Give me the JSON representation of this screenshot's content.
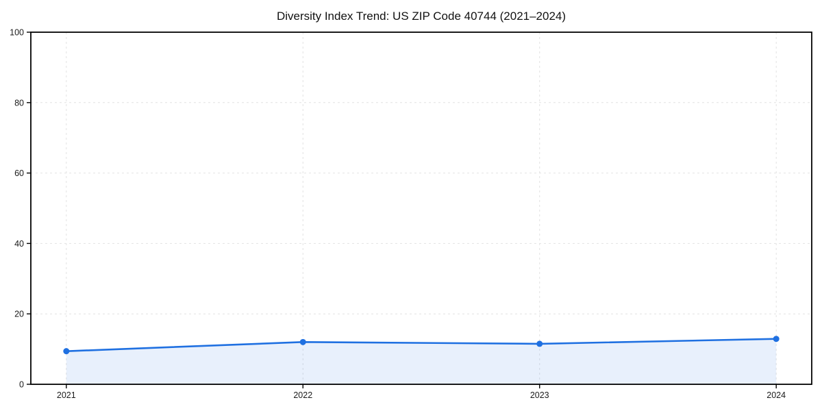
{
  "chart_data": {
    "type": "line",
    "title": "Diversity Index Trend: US ZIP Code 40744 (2021–2024)",
    "x": [
      2021,
      2022,
      2023,
      2024
    ],
    "series": [
      {
        "name": "Diversity Index",
        "values": [
          9.4,
          12.0,
          11.5,
          12.9
        ]
      }
    ],
    "xlabel": "",
    "ylabel": "",
    "xlim": [
      2020.85,
      2024.15
    ],
    "ylim": [
      0,
      100
    ],
    "xticks": [
      2021,
      2022,
      2023,
      2024
    ],
    "xtick_labels": [
      "2021",
      "2022",
      "2023",
      "2024"
    ],
    "yticks": [
      0,
      20,
      40,
      60,
      80,
      100
    ],
    "ytick_labels": [
      "0",
      "20",
      "40",
      "60",
      "80",
      "100"
    ],
    "grid": true,
    "grid_style": "dashed",
    "legend_position": "none",
    "area_fill": true,
    "marker": "circle",
    "colors": {
      "line": "#1f70e1",
      "marker": "#1f70e1",
      "area": "#1f70e1",
      "area_opacity": 0.1,
      "grid": "#e2e2e2",
      "frame": "#000000",
      "tick": "#000000",
      "tick_label": "#1a1a1a",
      "title": "#111111",
      "background": "#ffffff"
    }
  }
}
